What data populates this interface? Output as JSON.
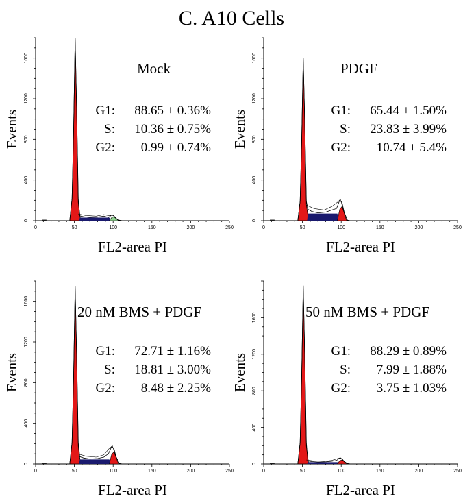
{
  "figure": {
    "title": "C.  A10 Cells"
  },
  "chart_data": [
    {
      "type": "area",
      "title": "Mock",
      "xlabel": "FL2-area  PI",
      "ylabel": "Events",
      "xlim": [
        0,
        250
      ],
      "ylim": [
        0,
        1800
      ],
      "xticks": [
        "0",
        "50",
        "100",
        "150",
        "200",
        "250"
      ],
      "yticks": [
        "0",
        "400",
        "800",
        "1200",
        "1600"
      ],
      "stats": [
        {
          "phase": "G1:",
          "value": "88.65 ± 0.36%"
        },
        {
          "phase": "S:",
          "value": "10.36 ± 0.75%"
        },
        {
          "phase": "G2:",
          "value": "0.99 ± 0.74%"
        }
      ],
      "g1_peak": 1800,
      "s_level": 30,
      "g2_peak": 55
    },
    {
      "type": "area",
      "title": "PDGF",
      "xlabel": "FL2-area  PI",
      "ylabel": "Events",
      "xlim": [
        0,
        250
      ],
      "ylim": [
        0,
        1800
      ],
      "xticks": [
        "0",
        "50",
        "100",
        "150",
        "200",
        "250"
      ],
      "yticks": [
        "0",
        "400",
        "800",
        "1200",
        "1600"
      ],
      "stats": [
        {
          "phase": "G1:",
          "value": "65.44 ± 1.50%"
        },
        {
          "phase": "S:",
          "value": "23.83 ± 3.99%"
        },
        {
          "phase": "G2:",
          "value": "10.74 ± 5.4%"
        }
      ],
      "g1_peak": 1600,
      "s_level": 70,
      "g2_peak": 200
    },
    {
      "type": "area",
      "title": "20 nM BMS + PDGF",
      "xlabel": "FL2-area  PI",
      "ylabel": "Events",
      "xlim": [
        0,
        250
      ],
      "ylim": [
        0,
        1800
      ],
      "xticks": [
        "0",
        "50",
        "100",
        "150",
        "200",
        "250"
      ],
      "yticks": [
        "0",
        "400",
        "800",
        "1200",
        "1600"
      ],
      "stats": [
        {
          "phase": "G1:",
          "value": "72.71 ± 1.16%"
        },
        {
          "phase": "S:",
          "value": "18.81 ± 3.00%"
        },
        {
          "phase": "G2:",
          "value": "8.48 ± 2.25%"
        }
      ],
      "g1_peak": 1750,
      "s_level": 45,
      "g2_peak": 170
    },
    {
      "type": "area",
      "title": "50 nM BMS + PDGF",
      "xlabel": "FL2-area  PI",
      "ylabel": "Events",
      "xlim": [
        0,
        250
      ],
      "ylim": [
        0,
        2000
      ],
      "xticks": [
        "0",
        "50",
        "100",
        "150",
        "200",
        "250"
      ],
      "yticks": [
        "0",
        "400",
        "800",
        "1200",
        "1600"
      ],
      "stats": [
        {
          "phase": "G1:",
          "value": "88.29 ± 0.89%"
        },
        {
          "phase": "S:",
          "value": "7.99 ± 1.88%"
        },
        {
          "phase": "G2:",
          "value": "3.75 ± 1.03%"
        }
      ],
      "g1_peak": 1950,
      "s_level": 20,
      "g2_peak": 65
    }
  ],
  "colors": {
    "g1": "#e31818",
    "s": "#1a1a6e",
    "g2_mock": "#8fd18f",
    "g2": "#e31818"
  }
}
